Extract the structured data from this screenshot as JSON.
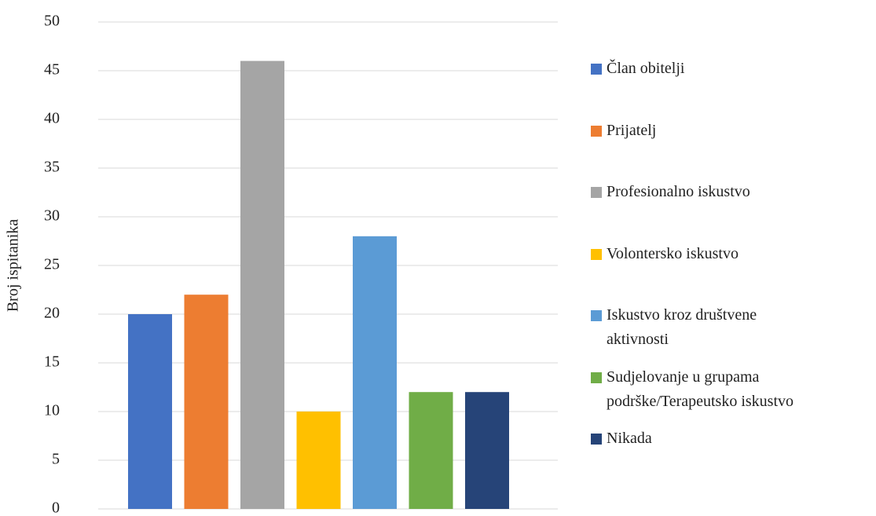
{
  "chart_data": {
    "type": "bar",
    "y_label": "Broj ispitanika",
    "series": [
      {
        "name": "Član obitelji",
        "color": "#4472c4",
        "values": [
          20
        ]
      },
      {
        "name": "Prijatelj",
        "color": "#ed7d31",
        "values": [
          22
        ]
      },
      {
        "name": "Profesionalno iskustvo",
        "color": "#a5a5a5",
        "values": [
          46
        ]
      },
      {
        "name": "Volontersko iskustvo",
        "color": "#ffc000",
        "values": [
          10
        ]
      },
      {
        "name": "Iskustvo kroz društvene aktivnosti",
        "color": "#5b9bd5",
        "values": [
          28
        ]
      },
      {
        "name": "Sudjelovanje u grupama podrške/Terapeutsko iskustvo",
        "color": "#70ad47",
        "values": [
          12
        ]
      },
      {
        "name": "Nikada",
        "color": "#264478",
        "values": [
          12
        ]
      }
    ],
    "ylim": [
      0,
      50
    ],
    "yticks": [
      0,
      5,
      10,
      15,
      20,
      25,
      30,
      35,
      40,
      45,
      50
    ],
    "grid": true,
    "legend": "right"
  }
}
